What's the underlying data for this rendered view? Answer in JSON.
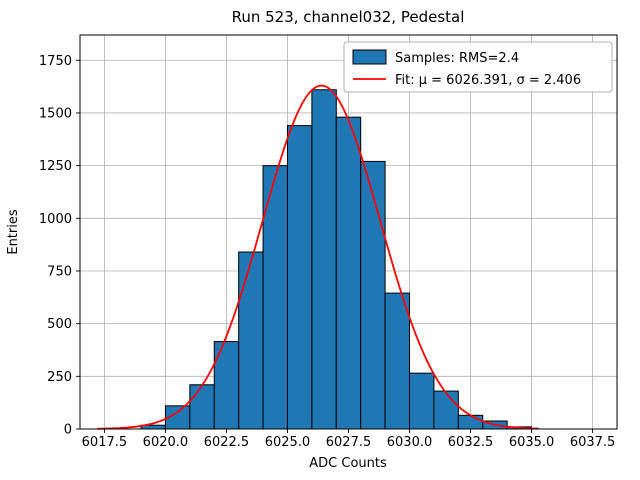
{
  "figure": {
    "title": "Run 523, channel032, Pedestal",
    "xlabel": "ADC Counts",
    "ylabel": "Entries"
  },
  "legend": {
    "samples_label": "Samples: RMS=2.4",
    "fit_label": "Fit: μ = 6026.391, σ = 2.406"
  },
  "colors": {
    "bar_fill": "#1f77b4",
    "bar_edge": "#000000",
    "fit_line": "#ff0000",
    "grid": "#b0b0b0"
  },
  "chart_data": {
    "type": "bar",
    "title": "Run 523, channel032, Pedestal",
    "xlabel": "ADC Counts",
    "ylabel": "Entries",
    "bin_edges": [
      6019,
      6020,
      6021,
      6022,
      6023,
      6024,
      6025,
      6026,
      6027,
      6028,
      6029,
      6030,
      6031,
      6032,
      6033,
      6034,
      6035
    ],
    "values": [
      18,
      110,
      210,
      415,
      840,
      1250,
      1440,
      1610,
      1480,
      1270,
      645,
      265,
      180,
      65,
      38,
      10
    ],
    "fit": {
      "mu": 6026.391,
      "sigma": 2.406,
      "amplitude": 1630,
      "rms": 2.4,
      "range": [
        6017.2,
        6035.4
      ]
    },
    "xlim": [
      6016.5,
      6038.5
    ],
    "ylim": [
      0,
      1870
    ],
    "xticks": [
      6017.5,
      6020.0,
      6022.5,
      6025.0,
      6027.5,
      6030.0,
      6032.5,
      6035.0,
      6037.5
    ],
    "xtick_labels": [
      "6017.5",
      "6020.0",
      "6022.5",
      "6025.0",
      "6027.5",
      "6030.0",
      "6032.5",
      "6035.0",
      "6037.5"
    ],
    "yticks": [
      0,
      250,
      500,
      750,
      1000,
      1250,
      1500,
      1750
    ],
    "ytick_labels": [
      "0",
      "250",
      "500",
      "750",
      "1000",
      "1250",
      "1500",
      "1750"
    ],
    "grid": true,
    "legend_position": "upper right"
  }
}
